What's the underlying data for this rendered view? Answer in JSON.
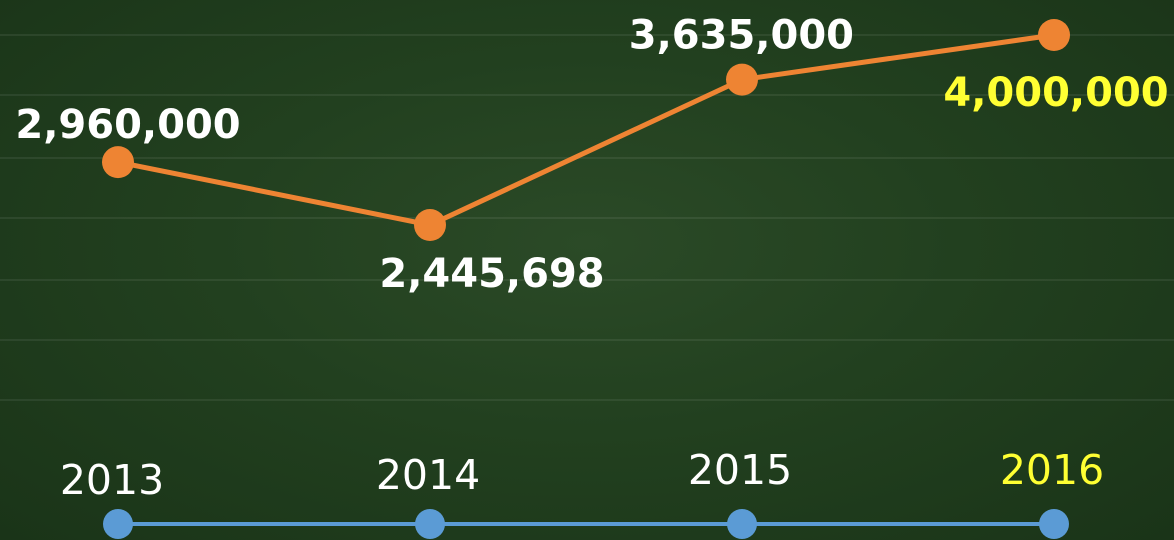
{
  "colors": {
    "background": "#22401f",
    "line": "#ee8433",
    "timeline": "#5b9bd5",
    "label": "#ffffff",
    "highlight": "#ffff33"
  },
  "chart_data": {
    "type": "line",
    "categories": [
      "2013",
      "2014",
      "2015",
      "2016"
    ],
    "values": [
      2960000,
      2445698,
      3635000,
      4000000
    ],
    "value_labels": [
      "2,960,000",
      "2,445,698",
      "3,635,000",
      "4,000,000"
    ],
    "highlight_index": 3,
    "title": "",
    "xlabel": "",
    "ylabel": "",
    "grid": true,
    "legend": "none"
  }
}
